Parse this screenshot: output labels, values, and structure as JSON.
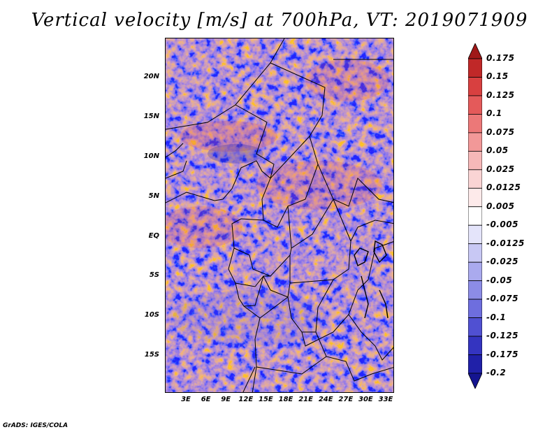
{
  "title": "Vertical velocity [m/s] at 700hPa, VT: 2019071909",
  "credit": "GrADS: IGES/COLA",
  "map": {
    "lat_labels": [
      "20N",
      "15N",
      "10N",
      "5N",
      "EQ",
      "5S",
      "10S",
      "15S"
    ],
    "lon_labels": [
      "3E",
      "6E",
      "9E",
      "12E",
      "15E",
      "18E",
      "21E",
      "24E",
      "27E",
      "30E",
      "33E"
    ]
  },
  "colorbar": {
    "labels": [
      "0.175",
      "0.15",
      "0.125",
      "0.1",
      "0.075",
      "0.05",
      "0.025",
      "0.0125",
      "0.005",
      "-0.005",
      "-0.0125",
      "-0.025",
      "-0.05",
      "-0.075",
      "-0.1",
      "-0.125",
      "-0.175",
      "-0.2"
    ],
    "colors": [
      "#a01818",
      "#c02828",
      "#d84040",
      "#e45a5a",
      "#ec7878",
      "#f29898",
      "#f6b8b8",
      "#fad4d4",
      "#fdeaea",
      "#ffffff",
      "#e4e4fa",
      "#c8c8f4",
      "#aaaaee",
      "#8c8ce6",
      "#6e6ede",
      "#5050d2",
      "#3434c0",
      "#2020a8",
      "#141490"
    ]
  }
}
